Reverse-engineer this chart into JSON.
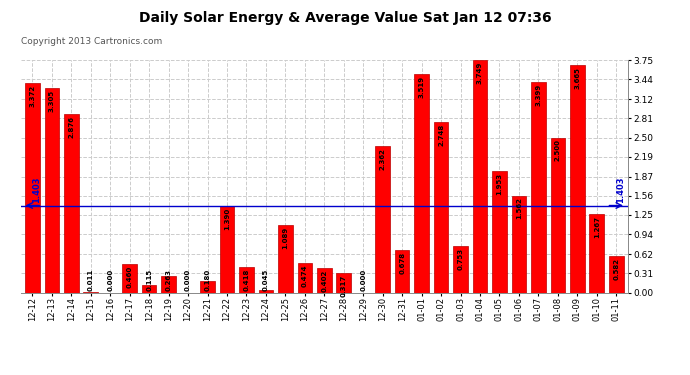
{
  "title": "Daily Solar Energy & Average Value Sat Jan 12 07:36",
  "copyright": "Copyright 2013 Cartronics.com",
  "average_value": 1.403,
  "categories": [
    "12-12",
    "12-13",
    "12-14",
    "12-15",
    "12-16",
    "12-17",
    "12-18",
    "12-19",
    "12-20",
    "12-21",
    "12-22",
    "12-23",
    "12-24",
    "12-25",
    "12-26",
    "12-27",
    "12-28",
    "12-29",
    "12-30",
    "12-31",
    "01-01",
    "01-02",
    "01-03",
    "01-04",
    "01-05",
    "01-06",
    "01-07",
    "01-08",
    "01-09",
    "01-10",
    "01-11"
  ],
  "values": [
    3.372,
    3.305,
    2.876,
    0.011,
    0.0,
    0.46,
    0.115,
    0.263,
    0.0,
    0.18,
    1.39,
    0.418,
    0.045,
    1.089,
    0.474,
    0.402,
    0.317,
    0.0,
    2.362,
    0.678,
    3.519,
    2.748,
    0.753,
    3.749,
    1.953,
    1.562,
    3.399,
    2.5,
    3.665,
    1.267,
    0.582
  ],
  "bar_color": "#ff0000",
  "bar_edge_color": "#bb0000",
  "avg_line_color": "#0000cc",
  "background_color": "#ffffff",
  "grid_color": "#cccccc",
  "ylim": [
    0,
    3.75
  ],
  "yticks": [
    0.0,
    0.31,
    0.62,
    0.94,
    1.25,
    1.56,
    1.87,
    2.19,
    2.5,
    2.81,
    3.12,
    3.44,
    3.75
  ],
  "legend_avg_color": "#0000aa",
  "legend_daily_color": "#ff0000",
  "legend_bg": "#000080"
}
